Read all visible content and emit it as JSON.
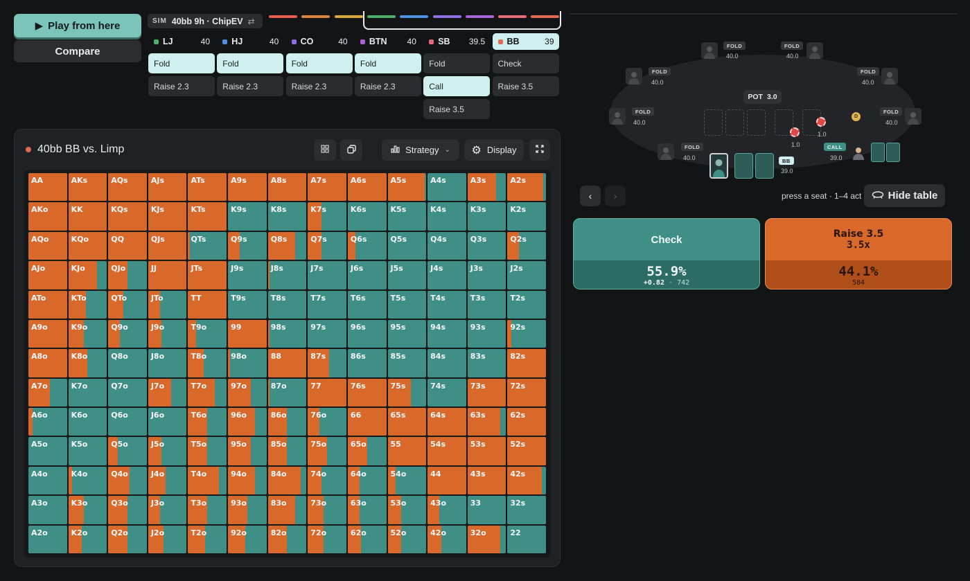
{
  "controls": {
    "play_label": "Play from here",
    "compare_label": "Compare"
  },
  "sim": {
    "tag": "SIM",
    "name": "40bb 9h · ChipEV",
    "swap_icon": "⇄"
  },
  "progress_colors": [
    "#e35d4f",
    "#d6833f",
    "#d9a83c",
    "#4fae6b",
    "#4f8fe0",
    "#8d6fe0",
    "#a861d6",
    "#e26a7a",
    "#e26a53"
  ],
  "seats": [
    {
      "name": "LJ",
      "stack": "40",
      "color": "#4fae6b",
      "actions": [
        "Fold",
        "Raise 2.3"
      ],
      "selected": 0
    },
    {
      "name": "HJ",
      "stack": "40",
      "color": "#4f8fe0",
      "actions": [
        "Fold",
        "Raise 2.3"
      ],
      "selected": 0
    },
    {
      "name": "CO",
      "stack": "40",
      "color": "#8d6fe0",
      "actions": [
        "Fold",
        "Raise 2.3"
      ],
      "selected": 0
    },
    {
      "name": "BTN",
      "stack": "40",
      "color": "#a861d6",
      "actions": [
        "Fold",
        "Raise 2.3"
      ],
      "selected": 0
    },
    {
      "name": "SB",
      "stack": "39.5",
      "color": "#e26a7a",
      "actions": [
        "Fold",
        "Call",
        "Raise 3.5"
      ],
      "selected": 1
    },
    {
      "name": "BB",
      "stack": "39",
      "color": "#e26a53",
      "actions": [
        "Check",
        "Raise 3.5"
      ],
      "selected": -1,
      "active": true
    }
  ],
  "panel": {
    "title": "40bb BB vs. Limp",
    "strategy_label": "Strategy",
    "display_label": "Display"
  },
  "grid": {
    "cells": [
      [
        "AA",
        1
      ],
      [
        "AKs",
        1
      ],
      [
        "AQs",
        1
      ],
      [
        "AJs",
        1
      ],
      [
        "ATs",
        1
      ],
      [
        "A9s",
        1
      ],
      [
        "A8s",
        1
      ],
      [
        "A7s",
        1
      ],
      [
        "A6s",
        1
      ],
      [
        "A5s",
        0.97
      ],
      [
        "A4s",
        0
      ],
      [
        "A3s",
        0.75
      ],
      [
        "A2s",
        0.93
      ],
      [
        "AKo",
        1
      ],
      [
        "KK",
        1
      ],
      [
        "KQs",
        1
      ],
      [
        "KJs",
        1
      ],
      [
        "KTs",
        1
      ],
      [
        "K9s",
        0
      ],
      [
        "K8s",
        0
      ],
      [
        "K7s",
        0.35
      ],
      [
        "K6s",
        0
      ],
      [
        "K5s",
        0
      ],
      [
        "K4s",
        0
      ],
      [
        "K3s",
        0
      ],
      [
        "K2s",
        0
      ],
      [
        "AQo",
        1
      ],
      [
        "KQo",
        1
      ],
      [
        "QQ",
        1
      ],
      [
        "QJs",
        1
      ],
      [
        "QTs",
        0.05
      ],
      [
        "Q9s",
        0.3
      ],
      [
        "Q8s",
        0.7
      ],
      [
        "Q7s",
        0.35
      ],
      [
        "Q6s",
        0.2
      ],
      [
        "Q5s",
        0
      ],
      [
        "Q4s",
        0
      ],
      [
        "Q3s",
        0
      ],
      [
        "Q2s",
        0.3
      ],
      [
        "AJo",
        1
      ],
      [
        "KJo",
        0.75
      ],
      [
        "QJo",
        0.5
      ],
      [
        "JJ",
        1
      ],
      [
        "JTs",
        1
      ],
      [
        "J9s",
        0
      ],
      [
        "J8s",
        0.05
      ],
      [
        "J7s",
        0
      ],
      [
        "J6s",
        0
      ],
      [
        "J5s",
        0
      ],
      [
        "J4s",
        0
      ],
      [
        "J3s",
        0
      ],
      [
        "J2s",
        0
      ],
      [
        "ATo",
        1
      ],
      [
        "KTo",
        0.45
      ],
      [
        "QTo",
        0.4
      ],
      [
        "JTo",
        0.3
      ],
      [
        "TT",
        1
      ],
      [
        "T9s",
        0
      ],
      [
        "T8s",
        0
      ],
      [
        "T7s",
        0
      ],
      [
        "T6s",
        0
      ],
      [
        "T5s",
        0
      ],
      [
        "T4s",
        0
      ],
      [
        "T3s",
        0
      ],
      [
        "T2s",
        0
      ],
      [
        "A9o",
        1
      ],
      [
        "K9o",
        0.4
      ],
      [
        "Q9o",
        0.3
      ],
      [
        "J9o",
        0.35
      ],
      [
        "T9o",
        0.2
      ],
      [
        "99",
        1
      ],
      [
        "98s",
        0.05
      ],
      [
        "97s",
        0
      ],
      [
        "96s",
        0
      ],
      [
        "95s",
        0
      ],
      [
        "94s",
        0
      ],
      [
        "93s",
        0
      ],
      [
        "92s",
        0.1
      ],
      [
        "A8o",
        1
      ],
      [
        "K8o",
        0.5
      ],
      [
        "Q8o",
        0
      ],
      [
        "J8o",
        0
      ],
      [
        "T8o",
        0.4
      ],
      [
        "98o",
        0.05
      ],
      [
        "88",
        1
      ],
      [
        "87s",
        0.55
      ],
      [
        "86s",
        0
      ],
      [
        "85s",
        0
      ],
      [
        "84s",
        0
      ],
      [
        "83s",
        0
      ],
      [
        "82s",
        1
      ],
      [
        "A7o",
        0.55
      ],
      [
        "K7o",
        0
      ],
      [
        "Q7o",
        0
      ],
      [
        "J7o",
        0.6
      ],
      [
        "T7o",
        0.7
      ],
      [
        "97o",
        0.6
      ],
      [
        "87o",
        0.05
      ],
      [
        "77",
        1
      ],
      [
        "76s",
        1
      ],
      [
        "75s",
        0.6
      ],
      [
        "74s",
        0
      ],
      [
        "73s",
        1
      ],
      [
        "72s",
        1
      ],
      [
        "A6o",
        0.1
      ],
      [
        "K6o",
        0
      ],
      [
        "Q6o",
        0
      ],
      [
        "J6o",
        0
      ],
      [
        "T6o",
        0.5
      ],
      [
        "96o",
        0.7
      ],
      [
        "86o",
        0.5
      ],
      [
        "76o",
        0.3
      ],
      [
        "66",
        1
      ],
      [
        "65s",
        1
      ],
      [
        "64s",
        1
      ],
      [
        "63s",
        0.85
      ],
      [
        "62s",
        1
      ],
      [
        "A5o",
        0
      ],
      [
        "K5o",
        0
      ],
      [
        "Q5o",
        0.25
      ],
      [
        "J5o",
        0.35
      ],
      [
        "T5o",
        0.5
      ],
      [
        "95o",
        0.6
      ],
      [
        "85o",
        0.5
      ],
      [
        "75o",
        0.5
      ],
      [
        "65o",
        0.5
      ],
      [
        "55",
        1
      ],
      [
        "54s",
        1
      ],
      [
        "53s",
        1
      ],
      [
        "52s",
        1
      ],
      [
        "A4o",
        0
      ],
      [
        "K4o",
        0.1
      ],
      [
        "Q4o",
        0.55
      ],
      [
        "J4o",
        0.45
      ],
      [
        "T4o",
        0.8
      ],
      [
        "94o",
        0.7
      ],
      [
        "84o",
        0.85
      ],
      [
        "74o",
        0.35
      ],
      [
        "64o",
        0.3
      ],
      [
        "54o",
        0.2
      ],
      [
        "44",
        1
      ],
      [
        "43s",
        1
      ],
      [
        "42s",
        0.9
      ],
      [
        "A3o",
        0
      ],
      [
        "K3o",
        0.4
      ],
      [
        "Q3o",
        0.5
      ],
      [
        "J3o",
        0.3
      ],
      [
        "T3o",
        0.5
      ],
      [
        "93o",
        0.5
      ],
      [
        "83o",
        0.7
      ],
      [
        "73o",
        0.4
      ],
      [
        "63o",
        0.3
      ],
      [
        "53o",
        0.35
      ],
      [
        "43o",
        0.3
      ],
      [
        "33",
        0
      ],
      [
        "32s",
        0
      ],
      [
        "A2o",
        0
      ],
      [
        "K2o",
        0.35
      ],
      [
        "Q2o",
        0.5
      ],
      [
        "J2o",
        0.4
      ],
      [
        "T2o",
        0.45
      ],
      [
        "92o",
        0.45
      ],
      [
        "82o",
        0.5
      ],
      [
        "72o",
        0.4
      ],
      [
        "62o",
        0.35
      ],
      [
        "52o",
        0.35
      ],
      [
        "42o",
        0.35
      ],
      [
        "32o",
        0.85
      ],
      [
        "22",
        0
      ]
    ]
  },
  "table": {
    "pot_label": "POT",
    "pot_value": "3.0",
    "seats": [
      {
        "tag": "FOLD",
        "stack": "40.0"
      },
      {
        "tag": "FOLD",
        "stack": "40.0"
      },
      {
        "tag": "FOLD",
        "stack": "40.0"
      },
      {
        "tag": "FOLD",
        "stack": "40.0"
      },
      {
        "tag": "FOLD",
        "stack": "40.0"
      },
      {
        "tag": "FOLD",
        "stack": "40.0"
      },
      {
        "tag": "FOLD",
        "stack": "40.0"
      },
      {
        "tag": "CALL",
        "stack": "39.0"
      },
      {
        "tag": "BB",
        "stack": "39.0"
      }
    ],
    "chip_bb": "1.0",
    "chip_sb": "1.0",
    "dealer": "D"
  },
  "nav": {
    "prev_icon": "‹",
    "next_icon": "›",
    "hint": "press a seat · 1–4 act",
    "hide_label": "Hide table"
  },
  "results": {
    "check": {
      "label": "Check",
      "pct": "55.9%",
      "ev": "+0.82",
      "combos": "742",
      "sep": "·"
    },
    "raise": {
      "label": "Raise 3.5",
      "size": "3.5x",
      "pct": "44.1%",
      "combos": "584"
    }
  },
  "colors": {
    "raise": "#d8692b",
    "check": "#3f8f86",
    "accent": "#cff0ee"
  }
}
